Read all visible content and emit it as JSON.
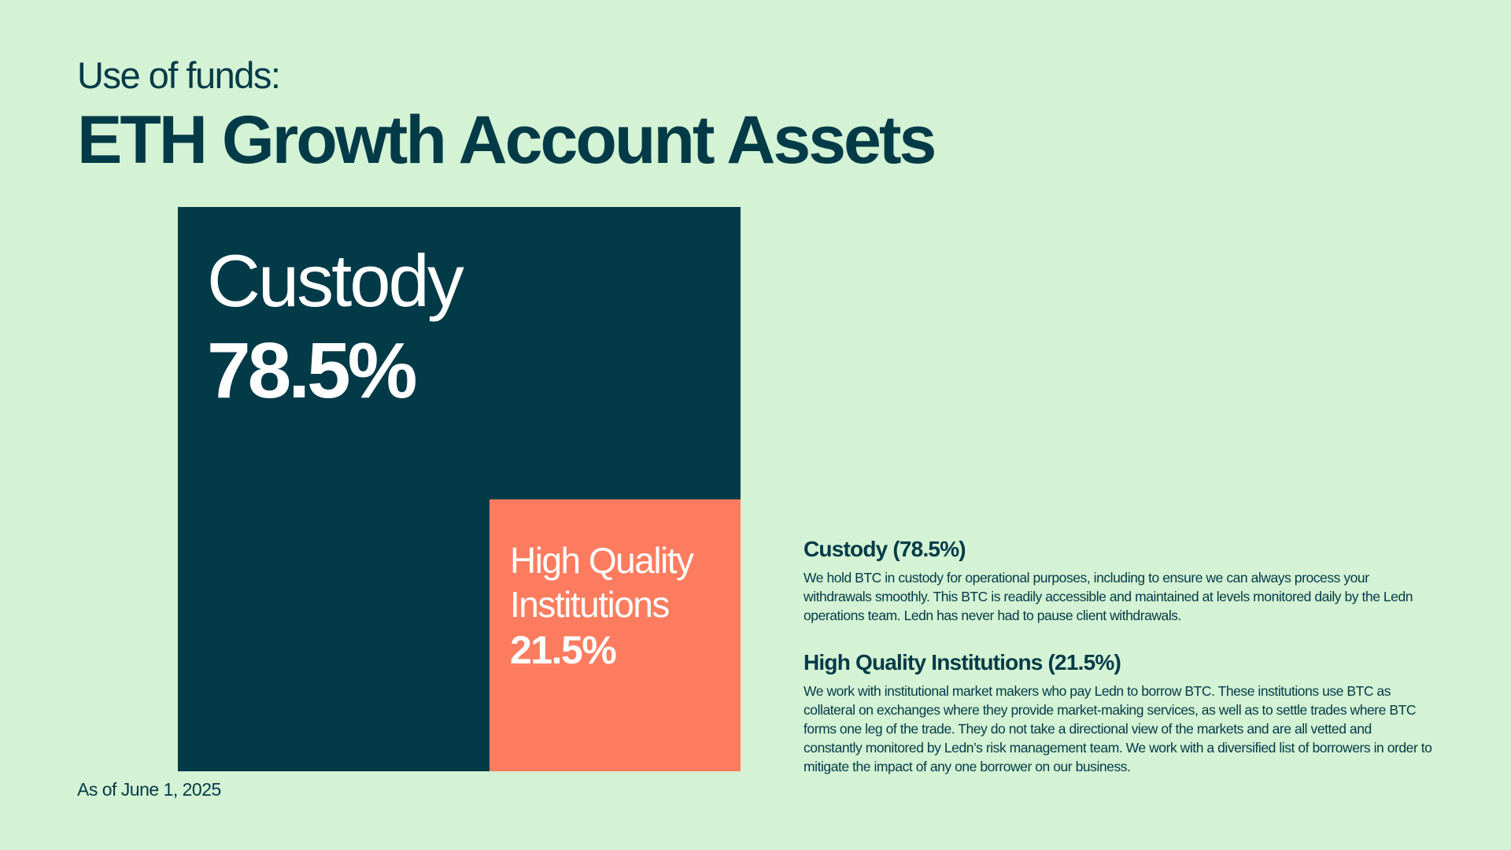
{
  "header": {
    "subtitle": "Use of funds:",
    "title": "ETH Growth Account Assets"
  },
  "chart_data": {
    "type": "treemap",
    "segments": [
      {
        "name": "Custody",
        "value": 78.5,
        "label": "78.5%",
        "color": "#023a47"
      },
      {
        "name": "High Quality Institutions",
        "value": 21.5,
        "label": "21.5%",
        "color": "#fd7c5f"
      }
    ]
  },
  "footnote": "As of June 1, 2025",
  "notes": [
    {
      "heading": "Custody (78.5%)",
      "body": "We hold BTC in custody for operational purposes, including to ensure we can always process your withdrawals smoothly. This BTC is readily accessible and maintained at levels monitored daily by the Ledn operations team. Ledn has never had to pause client withdrawals."
    },
    {
      "heading": "High Quality Institutions (21.5%)",
      "body": "We work with institutional market makers who pay Ledn to borrow BTC. These institutions use BTC as collateral on exchanges where they provide market-making services, as well as to settle trades where BTC forms one leg of the trade. They do not take a directional view of the markets and are all vetted and constantly monitored by Ledn’s risk management team. We work with a diversified list of borrowers in order to mitigate the impact of any one borrower on our business."
    }
  ]
}
